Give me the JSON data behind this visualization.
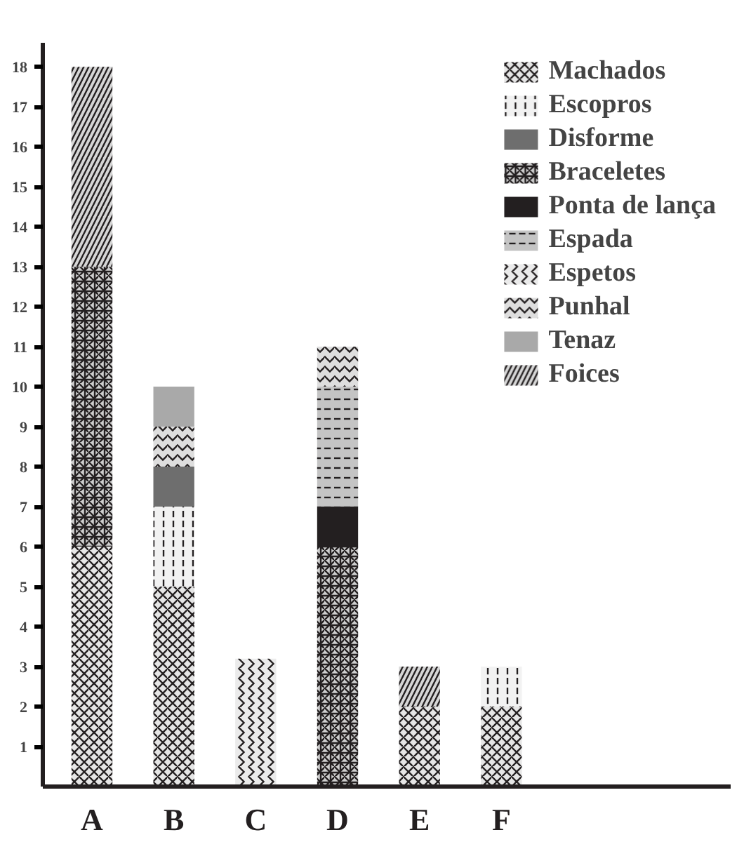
{
  "chart_data": {
    "type": "bar",
    "stacked": true,
    "categories": [
      "A",
      "B",
      "C",
      "D",
      "E",
      "F"
    ],
    "series": [
      {
        "name": "Machados",
        "color": "#e6e6e6",
        "values": [
          6,
          5,
          0,
          0,
          2,
          2
        ]
      },
      {
        "name": "Escopros",
        "color": "#f2f2f2",
        "values": [
          0,
          2,
          0,
          0,
          0,
          1
        ]
      },
      {
        "name": "Disforme",
        "color": "#6e6e6e",
        "values": [
          0,
          1,
          0,
          0,
          0,
          0
        ]
      },
      {
        "name": "Braceletes",
        "color": "#cfcfcf",
        "values": [
          7,
          0,
          0,
          6,
          0,
          0
        ]
      },
      {
        "name": "Ponta de lança",
        "color": "#231f20",
        "values": [
          0,
          0,
          0,
          1,
          0,
          0
        ]
      },
      {
        "name": "Espada",
        "color": "#c4c4c4",
        "values": [
          0,
          0,
          0,
          3,
          0,
          0
        ]
      },
      {
        "name": "Espetos",
        "color": "#ebebeb",
        "values": [
          0,
          0,
          3.2,
          0,
          0,
          0
        ]
      },
      {
        "name": "Punhal",
        "color": "#dedede",
        "values": [
          0,
          1,
          0,
          1,
          0,
          0
        ]
      },
      {
        "name": "Tenaz",
        "color": "#a9a9a9",
        "values": [
          0,
          1,
          0,
          0,
          0,
          0
        ]
      },
      {
        "name": "Foices",
        "color": "#d6d6d6",
        "values": [
          5,
          0,
          0,
          0,
          1,
          0
        ]
      }
    ],
    "ylim": [
      0,
      18.6
    ],
    "yticks": [
      1,
      2,
      3,
      4,
      5,
      6,
      7,
      8,
      9,
      10,
      11,
      12,
      13,
      14,
      15,
      16,
      17,
      18
    ],
    "grid": false,
    "legend": "top right"
  }
}
